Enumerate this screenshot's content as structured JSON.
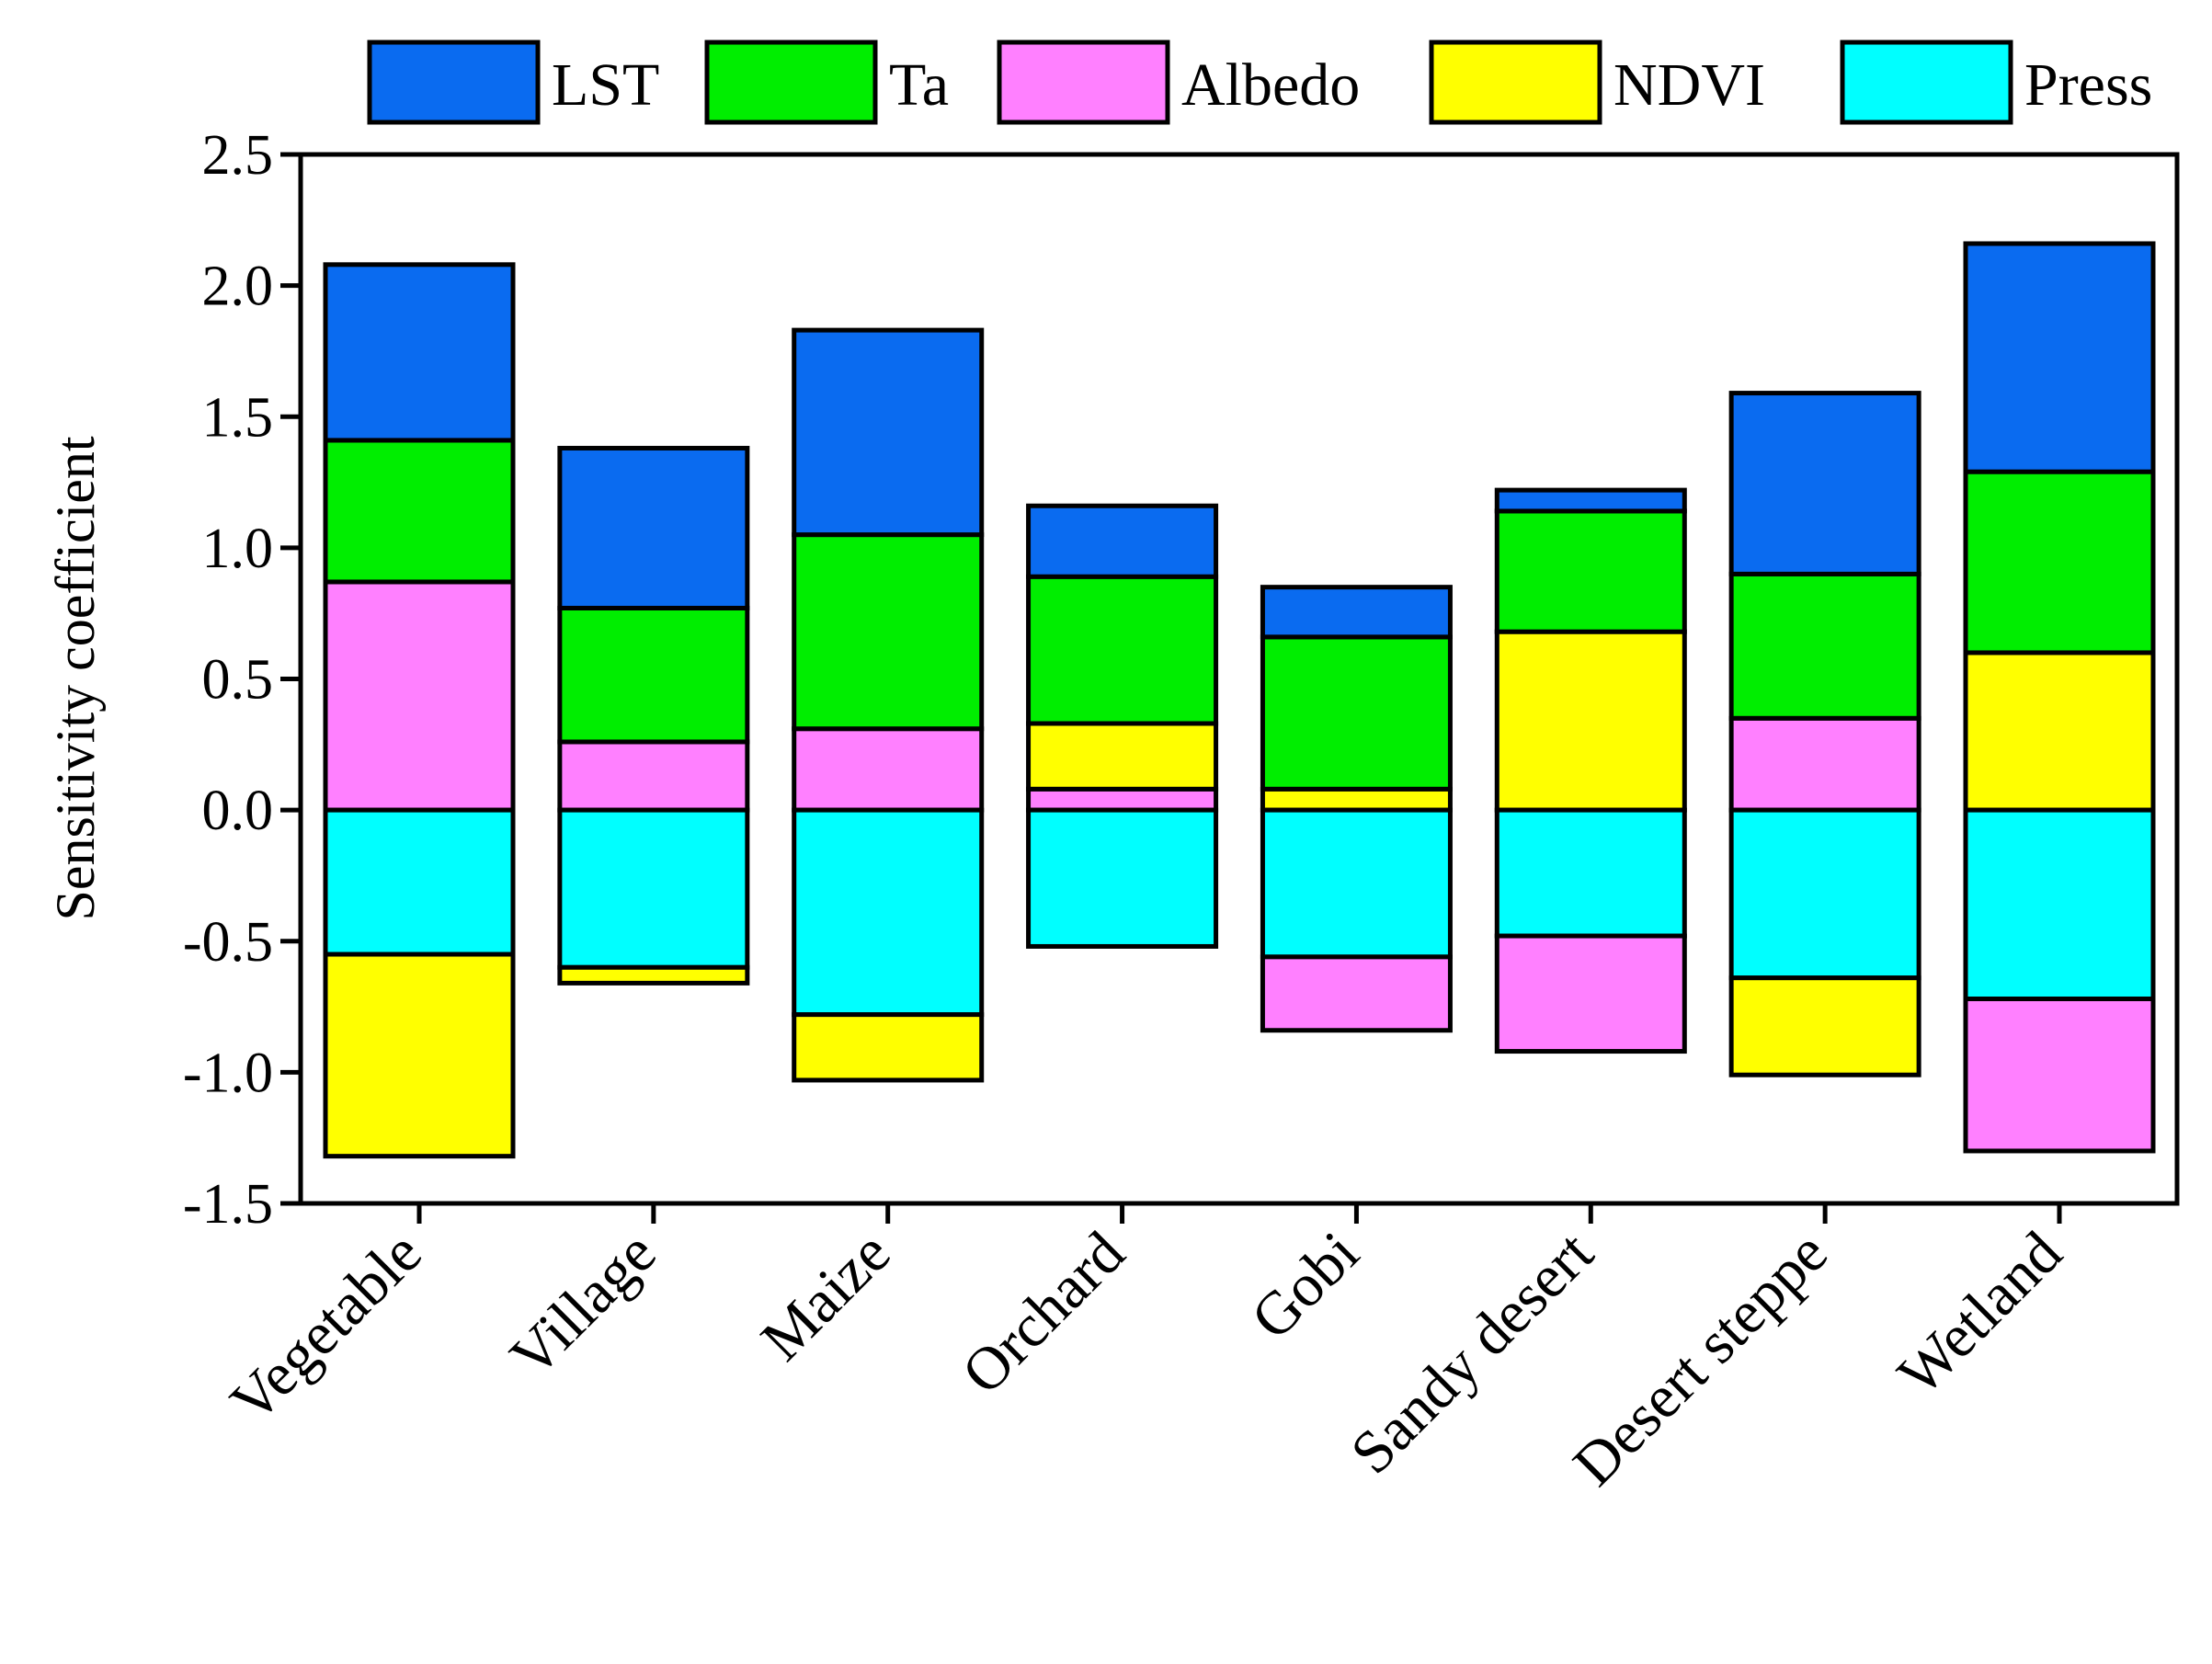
{
  "chart_data": {
    "type": "bar",
    "subtype": "stacked-diverging",
    "title": "",
    "xlabel": "",
    "ylabel": "Sensitivity coefficient",
    "ylim": [
      -1.5,
      2.5
    ],
    "yticks": [
      -1.5,
      -1.0,
      -0.5,
      0.0,
      0.5,
      1.0,
      1.5,
      2.0,
      2.5
    ],
    "ytick_labels": [
      "-1.5",
      "-1.0",
      "-0.5",
      "0.0",
      "0.5",
      "1.0",
      "1.5",
      "2.0",
      "2.5"
    ],
    "grid": false,
    "legend_position": "top",
    "categories": [
      "Vegetable",
      "Village",
      "Maize",
      "Orchard",
      "Gobi",
      "Sandy desert",
      "Desert steppe",
      "Wetland"
    ],
    "stack_order": [
      "Albedo",
      "NDVI",
      "Ta",
      "LST"
    ],
    "negative_stack_order": [
      "Press",
      "Albedo",
      "NDVI"
    ],
    "series": [
      {
        "name": "LST",
        "color": "#0A6BF0",
        "values": [
          0.67,
          0.61,
          0.78,
          0.27,
          0.19,
          0.08,
          0.69,
          0.87
        ]
      },
      {
        "name": "Ta",
        "color": "#00EE00",
        "values": [
          0.54,
          0.51,
          0.74,
          0.56,
          0.58,
          0.46,
          0.55,
          0.69
        ]
      },
      {
        "name": "Albedo",
        "color": "#FF80FF",
        "values": [
          0.87,
          0.26,
          0.31,
          0.08,
          -0.28,
          -0.44,
          0.35,
          -0.58
        ]
      },
      {
        "name": "NDVI",
        "color": "#FFFF00",
        "values": [
          -0.77,
          -0.06,
          -0.25,
          0.25,
          0.08,
          0.68,
          -0.37,
          0.6
        ]
      },
      {
        "name": "Press",
        "color": "#00FFFF",
        "values": [
          -0.55,
          -0.6,
          -0.78,
          -0.52,
          -0.56,
          -0.48,
          -0.64,
          -0.72
        ]
      }
    ]
  }
}
